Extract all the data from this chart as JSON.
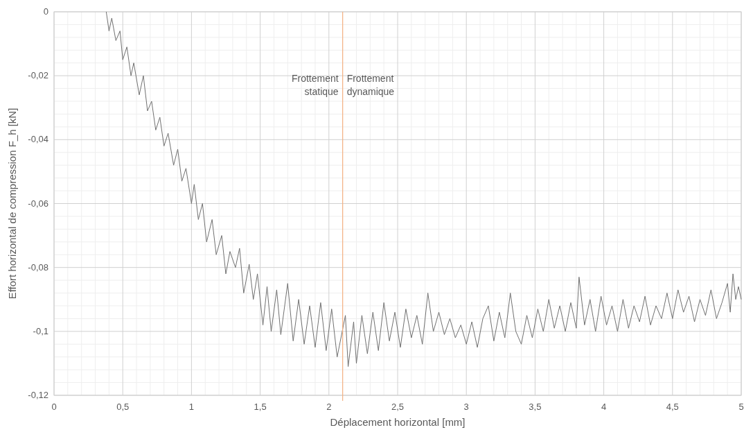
{
  "chart_data": {
    "type": "line",
    "xlabel": "Déplacement horizontal [mm]",
    "ylabel": "Effort horizontal de compression F_h [kN]",
    "xlim": [
      0,
      5
    ],
    "xticks": [
      0,
      {
        "value": 0.5,
        "label": "0,5"
      },
      1,
      {
        "value": 1.5,
        "label": "1,5"
      },
      2,
      {
        "value": 2.5,
        "label": "2,5"
      },
      3,
      {
        "value": 3.5,
        "label": "3,5"
      },
      4,
      {
        "value": 4.5,
        "label": "4,5"
      },
      5
    ],
    "ylim": [
      -0.12,
      0
    ],
    "yticks": [
      {
        "value": -0.12,
        "label": "-0,12"
      },
      {
        "value": -0.1,
        "label": "-0,1"
      },
      {
        "value": -0.08,
        "label": "-0,08"
      },
      {
        "value": -0.06,
        "label": "-0,06"
      },
      {
        "value": -0.04,
        "label": "-0,04"
      },
      {
        "value": -0.02,
        "label": "-0,02"
      },
      0
    ],
    "grid": true,
    "ref_lines": [
      {
        "axis": "x",
        "value": 2.1,
        "color": "#f4b183"
      }
    ],
    "annotations": [
      {
        "text": "Frottement statique",
        "x": 2.1,
        "y": -0.022
      },
      {
        "text": "Frottement dynamique",
        "x": 2.1,
        "y": -0.022
      }
    ],
    "series": [
      {
        "color": "#707070",
        "x": [
          0.38,
          0.4,
          0.42,
          0.45,
          0.48,
          0.5,
          0.53,
          0.56,
          0.58,
          0.62,
          0.65,
          0.68,
          0.71,
          0.74,
          0.77,
          0.8,
          0.83,
          0.87,
          0.9,
          0.93,
          0.96,
          1.0,
          1.02,
          1.05,
          1.08,
          1.11,
          1.15,
          1.18,
          1.22,
          1.25,
          1.28,
          1.32,
          1.35,
          1.38,
          1.42,
          1.45,
          1.48,
          1.52,
          1.55,
          1.58,
          1.62,
          1.65,
          1.7,
          1.74,
          1.78,
          1.82,
          1.86,
          1.9,
          1.94,
          1.98,
          2.02,
          2.06,
          2.12,
          2.14,
          2.18,
          2.2,
          2.24,
          2.28,
          2.32,
          2.36,
          2.4,
          2.44,
          2.48,
          2.52,
          2.56,
          2.6,
          2.64,
          2.68,
          2.72,
          2.76,
          2.8,
          2.84,
          2.88,
          2.92,
          2.96,
          3.0,
          3.04,
          3.08,
          3.12,
          3.16,
          3.2,
          3.24,
          3.28,
          3.32,
          3.36,
          3.4,
          3.44,
          3.48,
          3.52,
          3.56,
          3.6,
          3.64,
          3.68,
          3.72,
          3.76,
          3.8,
          3.82,
          3.86,
          3.9,
          3.94,
          3.98,
          4.02,
          4.06,
          4.1,
          4.14,
          4.18,
          4.22,
          4.26,
          4.3,
          4.34,
          4.38,
          4.42,
          4.46,
          4.5,
          4.54,
          4.58,
          4.62,
          4.66,
          4.7,
          4.74,
          4.78,
          4.82,
          4.86,
          4.9,
          4.92,
          4.94,
          4.96,
          4.98,
          5.0
        ],
        "values": [
          0,
          -0.006,
          -0.002,
          -0.009,
          -0.006,
          -0.015,
          -0.011,
          -0.02,
          -0.016,
          -0.026,
          -0.02,
          -0.031,
          -0.028,
          -0.037,
          -0.033,
          -0.042,
          -0.038,
          -0.048,
          -0.043,
          -0.053,
          -0.049,
          -0.06,
          -0.054,
          -0.065,
          -0.06,
          -0.072,
          -0.065,
          -0.076,
          -0.07,
          -0.082,
          -0.075,
          -0.08,
          -0.074,
          -0.088,
          -0.079,
          -0.09,
          -0.082,
          -0.098,
          -0.086,
          -0.1,
          -0.087,
          -0.101,
          -0.085,
          -0.103,
          -0.09,
          -0.104,
          -0.092,
          -0.105,
          -0.091,
          -0.106,
          -0.093,
          -0.108,
          -0.095,
          -0.111,
          -0.097,
          -0.11,
          -0.095,
          -0.107,
          -0.094,
          -0.106,
          -0.091,
          -0.103,
          -0.094,
          -0.105,
          -0.093,
          -0.102,
          -0.095,
          -0.104,
          -0.088,
          -0.1,
          -0.094,
          -0.101,
          -0.096,
          -0.102,
          -0.098,
          -0.104,
          -0.097,
          -0.105,
          -0.096,
          -0.092,
          -0.103,
          -0.094,
          -0.102,
          -0.088,
          -0.1,
          -0.104,
          -0.095,
          -0.102,
          -0.093,
          -0.1,
          -0.09,
          -0.099,
          -0.092,
          -0.1,
          -0.091,
          -0.099,
          -0.083,
          -0.098,
          -0.09,
          -0.1,
          -0.089,
          -0.098,
          -0.092,
          -0.1,
          -0.09,
          -0.099,
          -0.092,
          -0.097,
          -0.089,
          -0.098,
          -0.092,
          -0.096,
          -0.088,
          -0.096,
          -0.087,
          -0.094,
          -0.089,
          -0.097,
          -0.09,
          -0.095,
          -0.087,
          -0.096,
          -0.091,
          -0.085,
          -0.094,
          -0.082,
          -0.09,
          -0.086,
          -0.09
        ]
      }
    ]
  }
}
